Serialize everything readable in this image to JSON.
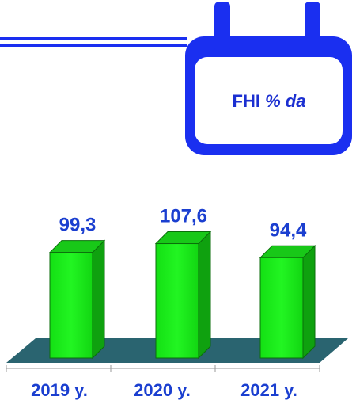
{
  "badge": {
    "text_main": "FHI",
    "text_italic": "% da"
  },
  "colors": {
    "accent_blue": "#1a2ff0",
    "bar_green": "#1ef21e",
    "bar_green_dark": "#0fa10f",
    "floor_teal": "#2a6470",
    "label_blue": "#1b3fd0"
  },
  "chart_data": {
    "type": "bar",
    "categories": [
      "2019 y.",
      "2020 y.",
      "2021 y."
    ],
    "values": [
      99.3,
      107.6,
      94.4
    ],
    "value_labels": [
      "99,3",
      "107,6",
      "94,4"
    ],
    "title": "",
    "xlabel": "",
    "ylabel": "",
    "ylim": [
      0,
      110
    ]
  }
}
